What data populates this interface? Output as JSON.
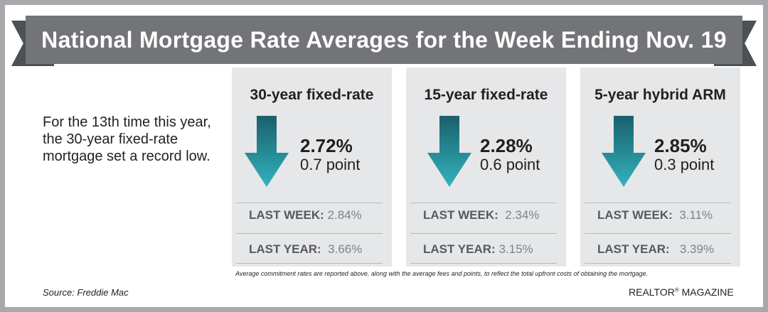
{
  "header": {
    "title": "National Mortgage Rate Averages for the Week Ending Nov. 19"
  },
  "intro": {
    "text": "For the 13th time this year, the 30-year fixed-rate mortgage set a record low."
  },
  "columns": [
    {
      "title": "30-year fixed-rate",
      "rate": "2.72%",
      "change": "0.7 point",
      "last_week_label": "LAST WEEK:",
      "last_week": "2.84%",
      "last_year_label": "LAST YEAR:",
      "last_year": "3.66%"
    },
    {
      "title": "15-year fixed-rate",
      "rate": "2.28%",
      "change": "0.6 point",
      "last_week_label": "LAST WEEK:",
      "last_week": "2.34%",
      "last_year_label": "LAST YEAR:",
      "last_year": "3.15%"
    },
    {
      "title": "5-year hybrid ARM",
      "rate": "2.85%",
      "change": "0.3 point",
      "last_week_label": "LAST WEEK:",
      "last_week": "3.11%",
      "last_year_label": "LAST YEAR:",
      "last_year": "3.39%"
    }
  ],
  "icons": {
    "trend": "down-arrow-icon"
  },
  "colors": {
    "arrow_top": "#1b5f6b",
    "arrow_bottom": "#31b3be",
    "banner": "#727477",
    "panel": "#e6e7e8"
  },
  "footnote": "Average commitment rates are reported above, along with the average fees and points, to reflect the total upfront costs of obtaining the mortgage.",
  "source": "Source: Freddie Mac",
  "brand": {
    "name": "REALTOR",
    "mark": "®",
    "suffix": " MAGAZINE"
  }
}
